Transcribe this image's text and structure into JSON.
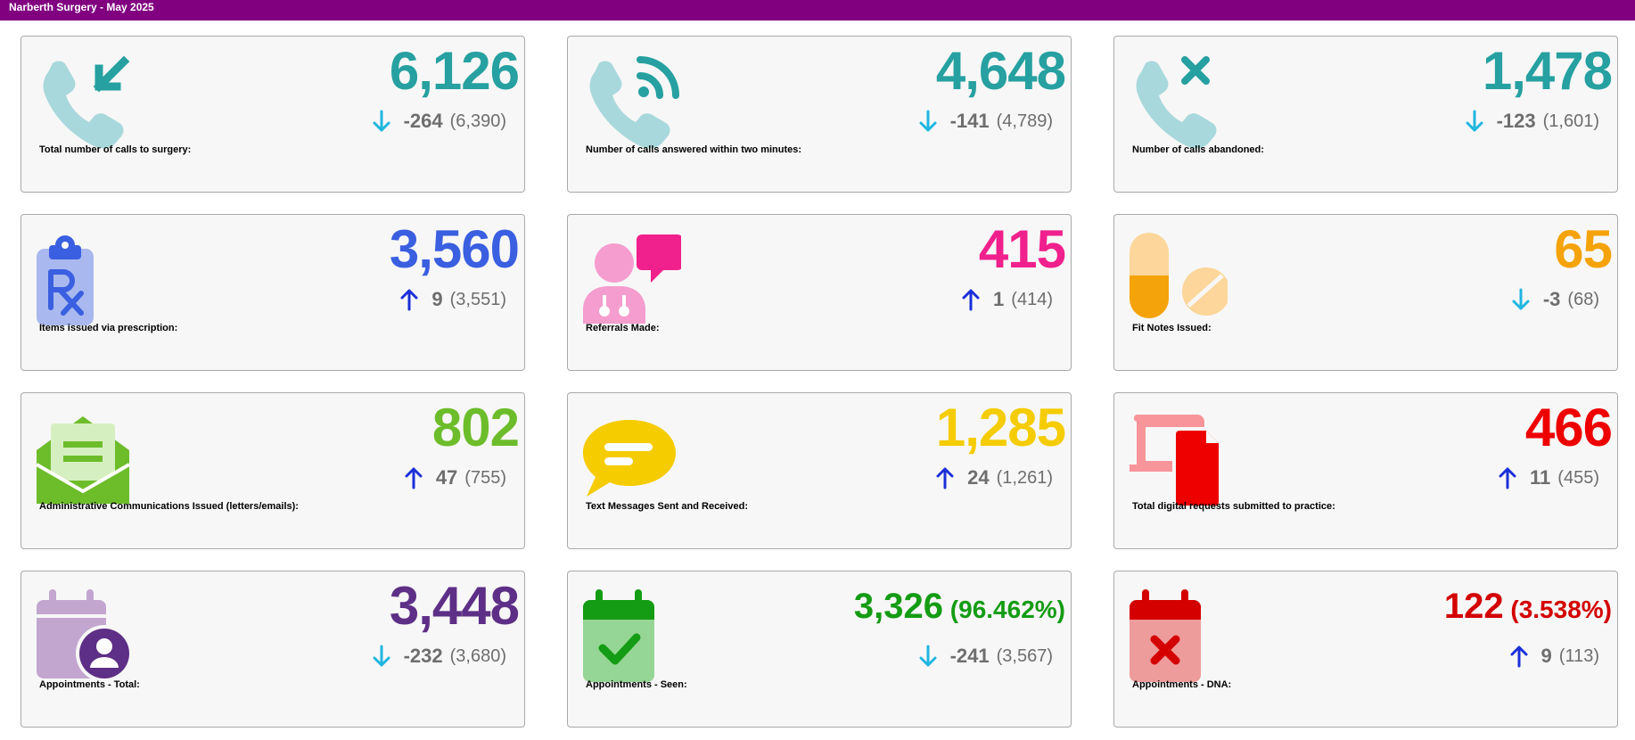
{
  "header": {
    "title": "Narberth Surgery - May 2025"
  },
  "cards": [
    {
      "label": "Total number of calls to surgery:",
      "value": "6,126",
      "delta": "-264",
      "previous": "(6,390)",
      "direction": "down",
      "icon": "phone-incoming-icon",
      "color": "#26a0a0"
    },
    {
      "label": "Number of calls answered within two minutes:",
      "value": "4,648",
      "delta": "-141",
      "previous": "(4,789)",
      "direction": "down",
      "icon": "phone-ringing-icon",
      "color": "#26a0a0"
    },
    {
      "label": "Number of calls abandoned:",
      "value": "1,478",
      "delta": "-123",
      "previous": "(1,601)",
      "direction": "down",
      "icon": "phone-missed-icon",
      "color": "#26a0a0"
    },
    {
      "label": "Items issued via prescription:",
      "value": "3,560",
      "delta": "9",
      "previous": "(3,551)",
      "direction": "up",
      "icon": "prescription-icon",
      "color": "#3a5fe0"
    },
    {
      "label": "Referrals Made:",
      "value": "415",
      "delta": "1",
      "previous": "(414)",
      "direction": "up",
      "icon": "doctor-chat-icon",
      "color": "#f0208c"
    },
    {
      "label": "Fit Notes Issued:",
      "value": "65",
      "delta": "-3",
      "previous": "(68)",
      "direction": "down",
      "icon": "pills-icon",
      "color": "#f5a30a"
    },
    {
      "label": "Administrative Communications Issued (letters/emails):",
      "value": "802",
      "delta": "47",
      "previous": "(755)",
      "direction": "up",
      "icon": "envelope-open-icon",
      "color": "#6dbd2b"
    },
    {
      "label": "Text Messages Sent and Received:",
      "value": "1,285",
      "delta": "24",
      "previous": "(1,261)",
      "direction": "up",
      "icon": "chat-bubble-icon",
      "color": "#f5cc00"
    },
    {
      "label": "Total digital requests submitted to practice:",
      "value": "466",
      "delta": "11",
      "previous": "(455)",
      "direction": "up",
      "icon": "devices-icon",
      "color": "#ee0000"
    },
    {
      "label": "Appointments - Total:",
      "value": "3,448",
      "delta": "-232",
      "previous": "(3,680)",
      "direction": "down",
      "icon": "calendar-user-icon",
      "color": "#5e2f86"
    },
    {
      "label": "Appointments - Seen:",
      "value": "3,326",
      "percent": "(96.462%)",
      "delta": "-241",
      "previous": "(3,567)",
      "direction": "down",
      "icon": "calendar-check-icon",
      "color": "#149c14"
    },
    {
      "label": "Appointments - DNA:",
      "value": "122",
      "percent": "(3.538%)",
      "delta": "9",
      "previous": "(113)",
      "direction": "up",
      "icon": "calendar-x-icon",
      "color": "#d40000"
    }
  ],
  "colors": {
    "arrow_down": "#1fb6e0",
    "arrow_up": "#1b2fd9",
    "header_bg": "#800080"
  }
}
